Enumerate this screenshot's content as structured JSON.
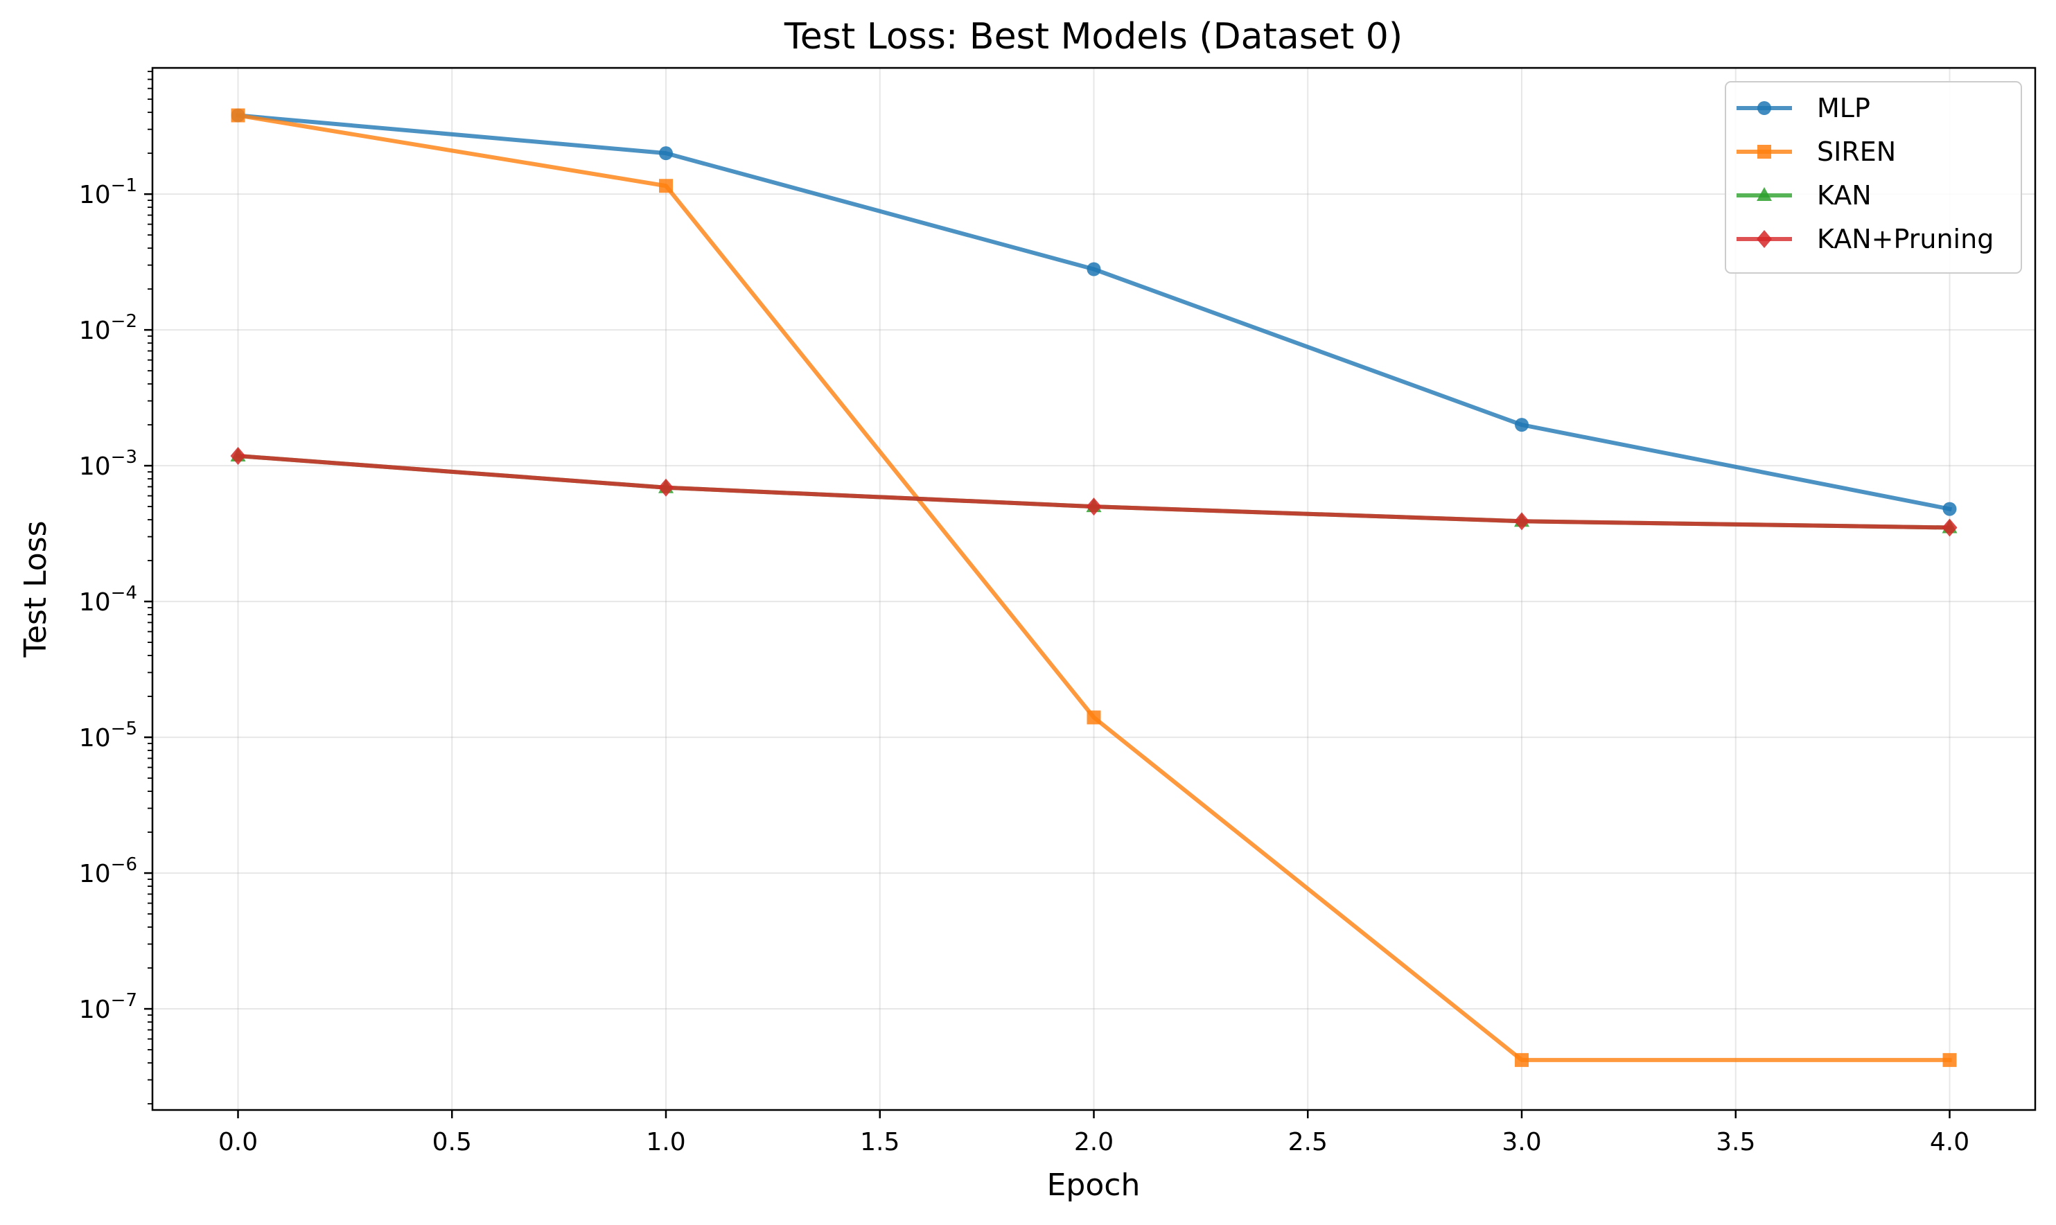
{
  "chart_data": {
    "type": "line",
    "title": "Test Loss: Best Models (Dataset 0)",
    "xlabel": "Epoch",
    "ylabel": "Test Loss",
    "yscale": "log",
    "grid": true,
    "legend_position": "top-right",
    "xlim": [
      -0.2,
      4.2
    ],
    "ylim": [
      1.8e-08,
      0.85
    ],
    "xticks": [
      0.0,
      0.5,
      1.0,
      1.5,
      2.0,
      2.5,
      3.0,
      3.5,
      4.0
    ],
    "xtick_labels": [
      "0.0",
      "0.5",
      "1.0",
      "1.5",
      "2.0",
      "2.5",
      "3.0",
      "3.5",
      "4.0"
    ],
    "yticks": [
      {
        "value": 1e-07,
        "base": "10",
        "exp": "−7"
      },
      {
        "value": 1e-06,
        "base": "10",
        "exp": "−6"
      },
      {
        "value": 1e-05,
        "base": "10",
        "exp": "−5"
      },
      {
        "value": 0.0001,
        "base": "10",
        "exp": "−4"
      },
      {
        "value": 0.001,
        "base": "10",
        "exp": "−3"
      },
      {
        "value": 0.01,
        "base": "10",
        "exp": "−2"
      },
      {
        "value": 0.1,
        "base": "10",
        "exp": "−1"
      }
    ],
    "x": [
      0,
      1,
      2,
      3,
      4
    ],
    "series": [
      {
        "name": "MLP",
        "color": "#1f77b4",
        "marker": "circle",
        "values": [
          0.38,
          0.2,
          0.028,
          0.002,
          0.00048
        ]
      },
      {
        "name": "SIREN",
        "color": "#ff7f0e",
        "marker": "square",
        "values": [
          0.38,
          0.115,
          1.4e-05,
          4.2e-08,
          4.2e-08
        ]
      },
      {
        "name": "KAN",
        "color": "#2ca02c",
        "marker": "triangle",
        "values": [
          0.00118,
          0.00069,
          0.0005,
          0.00039,
          0.00035
        ]
      },
      {
        "name": "KAN+Pruning",
        "color": "#d62728",
        "marker": "diamond",
        "values": [
          0.00118,
          0.00069,
          0.0005,
          0.00039,
          0.00035
        ]
      }
    ]
  }
}
